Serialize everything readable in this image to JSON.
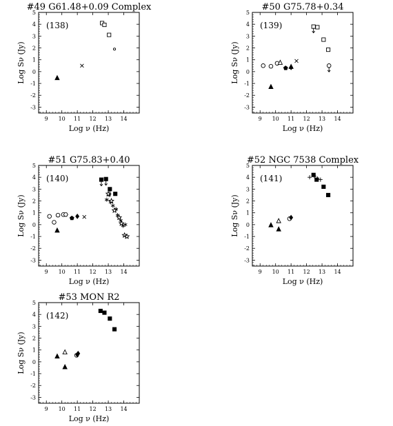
{
  "figure": {
    "xlabel": "Log ν (Hz)",
    "ylabel": "Log Sν (Jy)"
  },
  "chart_data": [
    {
      "type": "scatter",
      "title": "#49  G61.48+0.09 Complex",
      "annotation": "(138)",
      "xlim": [
        8.5,
        15
      ],
      "ylim": [
        -3.5,
        5
      ],
      "xticks": [
        "9",
        "10",
        "11",
        "12",
        "13",
        "14"
      ],
      "yticks": [
        "-3",
        "-2",
        "-1",
        "0",
        "1",
        "2",
        "3",
        "4",
        "5"
      ],
      "series": [
        {
          "marker": "triangle-filled",
          "points": [
            [
              9.7,
              -0.55
            ]
          ]
        },
        {
          "marker": "cross",
          "points": [
            [
              11.3,
              0.5
            ]
          ]
        },
        {
          "marker": "square-open",
          "points": [
            [
              12.6,
              4.1
            ],
            [
              12.75,
              3.95
            ],
            [
              13.05,
              3.1
            ]
          ]
        },
        {
          "marker": "circle-small",
          "points": [
            [
              13.4,
              1.9
            ]
          ]
        }
      ]
    },
    {
      "type": "scatter",
      "title": "#50  G75.78+0.34",
      "annotation": "(139)",
      "xlim": [
        8.5,
        15
      ],
      "ylim": [
        -3.5,
        5
      ],
      "xticks": [
        "9",
        "10",
        "11",
        "12",
        "13",
        "14"
      ],
      "yticks": [
        "-3",
        "-2",
        "-1",
        "0",
        "1",
        "2",
        "3",
        "4",
        "5"
      ],
      "series": [
        {
          "marker": "circle-open",
          "points": [
            [
              9.2,
              0.5
            ],
            [
              9.7,
              0.45
            ],
            [
              10.1,
              0.7
            ]
          ]
        },
        {
          "marker": "triangle-open",
          "points": [
            [
              10.3,
              0.75
            ]
          ]
        },
        {
          "marker": "triangle-filled",
          "points": [
            [
              9.7,
              -1.3
            ],
            [
              11.0,
              0.4
            ]
          ]
        },
        {
          "marker": "pentagon-filled",
          "points": [
            [
              10.65,
              0.3
            ]
          ]
        },
        {
          "marker": "diamond-filled",
          "points": [
            [
              11.0,
              0.35
            ]
          ]
        },
        {
          "marker": "cross",
          "points": [
            [
              11.35,
              0.9
            ]
          ]
        },
        {
          "marker": "square-open",
          "points": [
            [
              12.45,
              3.8
            ],
            [
              12.7,
              3.75
            ],
            [
              13.1,
              2.7
            ],
            [
              13.4,
              1.85
            ]
          ]
        },
        {
          "marker": "circle-open",
          "points": [
            [
              13.45,
              0.5
            ]
          ]
        },
        {
          "marker": "upper-limit",
          "points": [
            [
              12.45,
              3.8
            ],
            [
              13.45,
              0.5
            ]
          ]
        }
      ]
    },
    {
      "type": "scatter",
      "title": "#51  G75.83+0.40",
      "annotation": "(140)",
      "xlim": [
        8.5,
        15
      ],
      "ylim": [
        -3.5,
        5
      ],
      "xticks": [
        "9",
        "10",
        "11",
        "12",
        "13",
        "14"
      ],
      "yticks": [
        "-3",
        "-2",
        "-1",
        "0",
        "1",
        "2",
        "3",
        "4",
        "5"
      ],
      "series": [
        {
          "marker": "circle-open",
          "points": [
            [
              9.2,
              0.7
            ],
            [
              9.5,
              0.2
            ],
            [
              9.75,
              0.8
            ],
            [
              10.1,
              0.85
            ]
          ]
        },
        {
          "marker": "triangle-filled",
          "points": [
            [
              9.7,
              -0.5
            ]
          ]
        },
        {
          "marker": "hexagon-open",
          "points": [
            [
              10.25,
              0.85
            ]
          ]
        },
        {
          "marker": "pentagon-filled",
          "points": [
            [
              10.65,
              0.55
            ]
          ]
        },
        {
          "marker": "diamond-filled",
          "points": [
            [
              11.0,
              0.7
            ]
          ]
        },
        {
          "marker": "cross",
          "points": [
            [
              11.45,
              0.65
            ]
          ]
        },
        {
          "marker": "square-filled",
          "points": [
            [
              12.55,
              3.8
            ],
            [
              12.85,
              3.85
            ],
            [
              13.1,
              3.0
            ],
            [
              13.45,
              2.6
            ]
          ]
        },
        {
          "marker": "upper-limit",
          "points": [
            [
              12.55,
              3.8
            ],
            [
              12.85,
              3.85
            ],
            [
              13.1,
              3.0
            ]
          ]
        },
        {
          "marker": "asterisk",
          "points": [
            [
              12.9,
              2.1
            ],
            [
              13.05,
              2.5
            ],
            [
              13.15,
              1.9
            ],
            [
              13.3,
              1.6
            ],
            [
              13.5,
              1.3
            ],
            [
              13.6,
              0.8
            ],
            [
              13.8,
              0.35
            ],
            [
              13.95,
              -0.1
            ],
            [
              14.1,
              0.0
            ]
          ]
        },
        {
          "marker": "star-open",
          "points": [
            [
              13.0,
              2.6
            ],
            [
              13.2,
              2.0
            ],
            [
              13.4,
              1.2
            ],
            [
              13.7,
              0.6
            ],
            [
              13.85,
              0.1
            ],
            [
              14.05,
              -0.9
            ],
            [
              14.2,
              -1.0
            ]
          ]
        }
      ]
    },
    {
      "type": "scatter",
      "title": "#52  NGC 7538 Complex",
      "annotation": "(141)",
      "xlim": [
        8.5,
        15
      ],
      "ylim": [
        -3.5,
        5
      ],
      "xticks": [
        "9",
        "10",
        "11",
        "12",
        "13",
        "14"
      ],
      "yticks": [
        "-3",
        "-2",
        "-1",
        "0",
        "1",
        "2",
        "3",
        "4",
        "5"
      ],
      "series": [
        {
          "marker": "triangle-filled",
          "points": [
            [
              9.7,
              -0.05
            ],
            [
              10.2,
              -0.4
            ]
          ]
        },
        {
          "marker": "triangle-open",
          "points": [
            [
              10.2,
              0.3
            ]
          ]
        },
        {
          "marker": "circle-open",
          "points": [
            [
              10.9,
              0.5
            ]
          ]
        },
        {
          "marker": "diamond-filled",
          "points": [
            [
              11.0,
              0.6
            ]
          ]
        },
        {
          "marker": "plus",
          "points": [
            [
              12.2,
              4.0
            ],
            [
              12.5,
              4.1
            ],
            [
              12.7,
              3.9
            ],
            [
              12.9,
              3.8
            ]
          ]
        },
        {
          "marker": "square-filled",
          "points": [
            [
              12.45,
              4.2
            ],
            [
              12.65,
              3.8
            ],
            [
              13.1,
              3.2
            ],
            [
              13.4,
              2.5
            ]
          ]
        }
      ]
    },
    {
      "type": "scatter",
      "title": "#53  MON R2",
      "annotation": "(142)",
      "xlim": [
        8.5,
        15
      ],
      "ylim": [
        -3.5,
        5
      ],
      "xticks": [
        "9",
        "10",
        "11",
        "12",
        "13",
        "14"
      ],
      "yticks": [
        "-3",
        "-2",
        "-1",
        "0",
        "1",
        "2",
        "3",
        "4",
        "5"
      ],
      "series": [
        {
          "marker": "triangle-filled",
          "points": [
            [
              9.7,
              0.45
            ],
            [
              10.2,
              -0.45
            ]
          ]
        },
        {
          "marker": "triangle-open",
          "points": [
            [
              10.2,
              0.8
            ]
          ]
        },
        {
          "marker": "circle-open",
          "points": [
            [
              10.95,
              0.55
            ]
          ]
        },
        {
          "marker": "diamond-filled",
          "points": [
            [
              11.05,
              0.7
            ],
            [
              11.0,
              0.6
            ]
          ]
        },
        {
          "marker": "square-filled",
          "points": [
            [
              12.5,
              4.3
            ],
            [
              12.75,
              4.15
            ],
            [
              13.1,
              3.65
            ],
            [
              13.4,
              2.75
            ]
          ]
        }
      ]
    }
  ]
}
